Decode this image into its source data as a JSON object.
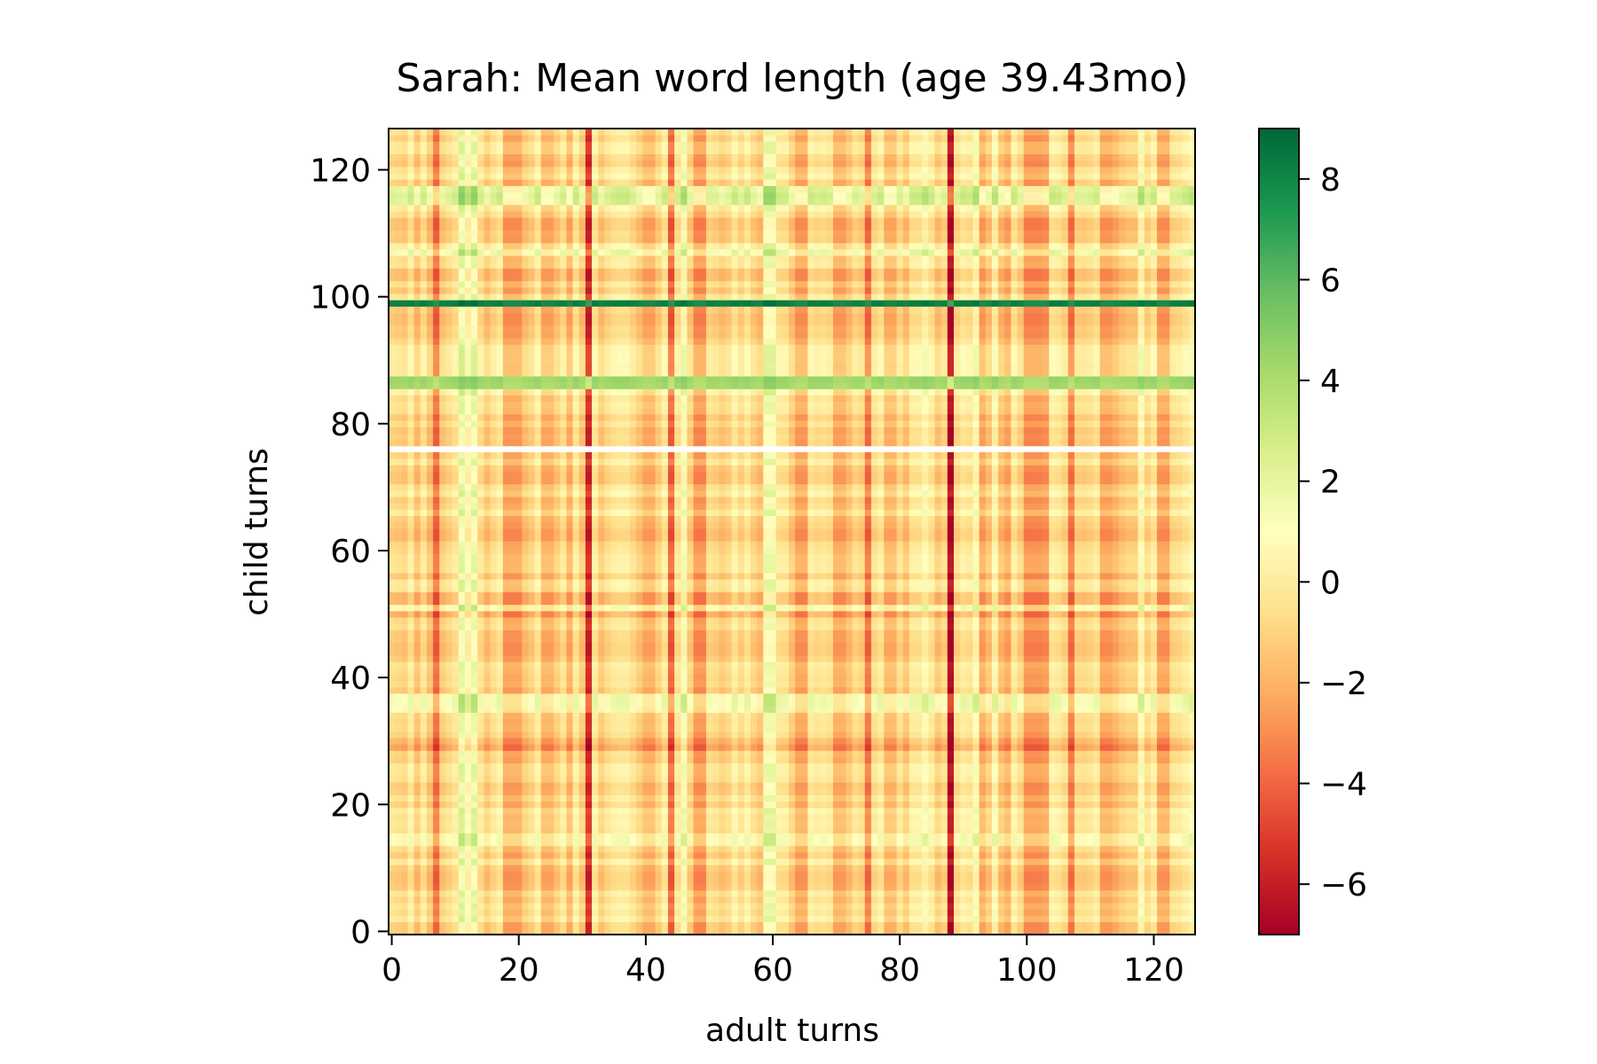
{
  "chart_data": {
    "type": "heatmap",
    "title": "Sarah: Mean word length (age 39.43mo)",
    "xlabel": "adult turns",
    "ylabel": "child turns",
    "n_cols": 127,
    "n_rows": 127,
    "xlim": [
      -0.5,
      126.5
    ],
    "ylim": [
      -0.5,
      126.5
    ],
    "x_ticks": [
      0,
      20,
      40,
      60,
      80,
      100,
      120
    ],
    "y_ticks": [
      0,
      20,
      40,
      60,
      80,
      100,
      120
    ],
    "colorbar": {
      "colormap": "RdYlGn",
      "vmin": -7,
      "vmax": 9,
      "ticks": [
        8,
        6,
        4,
        2,
        0,
        -2,
        -4,
        -6
      ],
      "tick_labels": [
        "8",
        "6",
        "4",
        "2",
        "0",
        "−2",
        "−4",
        "−6"
      ]
    },
    "row_values_summary": "child turn rows with notable values: row 99 ≈ +7 (strong green), rows 86-87 ≈ +4, rows 115-117 ≈ +2.5, row 76 missing (blank)",
    "column_values_summary": "adult turn columns with notable values: column 31 ≈ -5, column 88 ≈ -6 (strong red), columns 7, 44, 75, 107 ≈ -3",
    "missing_rows": [
      76
    ],
    "row_effects": {
      "99": 8.2,
      "100": 0.5,
      "86": 4.2,
      "87": 4.4,
      "85": 1.0,
      "115": 2.8,
      "116": 3.0,
      "117": 2.6,
      "107": 2.0,
      "108": 0.8,
      "36": 1.8,
      "37": 1.8,
      "35": 1.6,
      "14": 1.4,
      "15": 1.4,
      "29": -1.8,
      "30": -1.2,
      "50": -1.5,
      "51": 1.4,
      "52": -1.2,
      "53": -1.2,
      "62": -1.0,
      "63": -1.0,
      "44": -0.9,
      "45": -0.9,
      "8": -0.8,
      "9": -0.8,
      "103": -1.0,
      "104": -1.0,
      "111": -0.9,
      "112": -0.9,
      "96": -0.9,
      "97": -0.9,
      "71": -0.8,
      "72": -0.8
    },
    "col_effects": {
      "31": -4.8,
      "88": -5.8,
      "7": -3.0,
      "44": -3.2,
      "75": -2.8,
      "107": -2.6,
      "100": -2.0,
      "101": -2.0,
      "102": -2.0,
      "103": -1.8,
      "11": 2.6,
      "12": 1.4,
      "13": 2.4,
      "18": -1.6,
      "19": -1.6,
      "20": -1.6,
      "24": -1.2,
      "25": -1.2,
      "28": -1.2,
      "40": -1.2,
      "41": -1.2,
      "46": 1.8,
      "48": -2.0,
      "49": -2.0,
      "54": 0.8,
      "59": 2.2,
      "60": 2.2,
      "61": 0.6,
      "64": -1.6,
      "65": -1.6,
      "70": -1.4,
      "71": -1.4,
      "78": -1.0,
      "79": -1.0,
      "84": 1.4,
      "92": 1.6,
      "93": -1.4,
      "95": 1.2,
      "97": -1.4,
      "104": 0.8,
      "112": -1.6,
      "113": -1.6,
      "114": -1.2,
      "118": 1.6,
      "121": -1.6,
      "122": -1.6,
      "126": 1.2
    },
    "base_value": -0.6
  }
}
